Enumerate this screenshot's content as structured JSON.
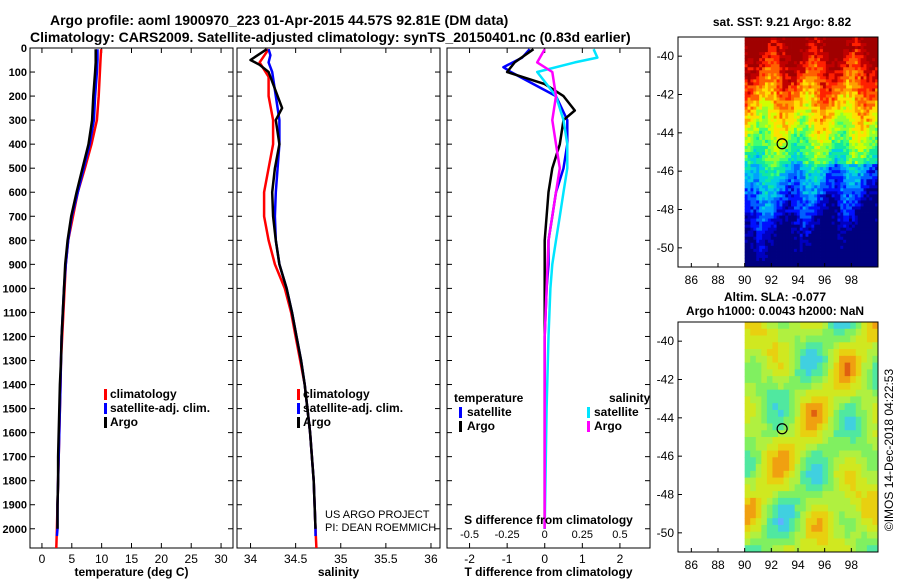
{
  "titles": {
    "line1": "Argo profile: aoml 1900970_223 01-Apr-2015 44.57S 92.81E (DM data)",
    "line2": "Climatology: CARS2009. Satellite-adjusted climatology: synTS_20150401.nc (0.83d earlier)"
  },
  "colors": {
    "climatology": "#ff0000",
    "satellite": "#0000ff",
    "argo": "#000000",
    "s_sat": "#00e5ff",
    "s_argo": "#ff00ff"
  },
  "chart_data": [
    {
      "type": "line",
      "id": "temperature",
      "xlabel": "temperature (deg C)",
      "xlim": [
        -2,
        32
      ],
      "xticks": [
        0,
        5,
        10,
        15,
        20,
        25,
        30
      ],
      "ylim": [
        2080,
        0
      ],
      "yticks": [
        0,
        100,
        200,
        300,
        400,
        500,
        600,
        700,
        800,
        900,
        1000,
        1100,
        1200,
        1300,
        1400,
        1500,
        1600,
        1700,
        1800,
        1900,
        2000
      ],
      "legend": [
        "climatology",
        "satellite-adj. clim.",
        "Argo"
      ],
      "series": [
        {
          "name": "climatology",
          "color": "#ff0000",
          "points": [
            [
              9.9,
              5
            ],
            [
              9.8,
              50
            ],
            [
              9.7,
              100
            ],
            [
              9.5,
              200
            ],
            [
              9.2,
              300
            ],
            [
              8.3,
              400
            ],
            [
              7.2,
              500
            ],
            [
              6.0,
              600
            ],
            [
              5.2,
              700
            ],
            [
              4.4,
              800
            ],
            [
              4.0,
              900
            ],
            [
              3.8,
              1000
            ],
            [
              3.6,
              1100
            ],
            [
              3.4,
              1200
            ],
            [
              3.2,
              1300
            ],
            [
              3.1,
              1400
            ],
            [
              3.0,
              1500
            ],
            [
              2.9,
              1600
            ],
            [
              2.8,
              1700
            ],
            [
              2.7,
              1800
            ],
            [
              2.6,
              1900
            ],
            [
              2.5,
              2000
            ],
            [
              2.4,
              2080
            ]
          ]
        },
        {
          "name": "satellite-adj. clim.",
          "color": "#0000ff",
          "points": [
            [
              9.3,
              5
            ],
            [
              9.3,
              50
            ],
            [
              9.2,
              100
            ],
            [
              8.9,
              200
            ],
            [
              8.7,
              300
            ],
            [
              8.0,
              400
            ],
            [
              7.0,
              500
            ],
            [
              6.0,
              600
            ],
            [
              5.0,
              700
            ],
            [
              4.4,
              800
            ],
            [
              4.0,
              900
            ],
            [
              3.7,
              1000
            ],
            [
              3.5,
              1100
            ],
            [
              3.3,
              1200
            ],
            [
              3.2,
              1300
            ],
            [
              3.1,
              1400
            ],
            [
              3.0,
              1500
            ],
            [
              2.9,
              1600
            ],
            [
              2.8,
              1700
            ],
            [
              2.7,
              1800
            ],
            [
              2.6,
              1900
            ],
            [
              2.6,
              2000
            ],
            [
              2.5,
              2030
            ]
          ]
        },
        {
          "name": "Argo",
          "color": "#000000",
          "points": [
            [
              9.0,
              5
            ],
            [
              9.0,
              60
            ],
            [
              8.9,
              100
            ],
            [
              8.6,
              200
            ],
            [
              8.4,
              300
            ],
            [
              7.8,
              400
            ],
            [
              6.8,
              500
            ],
            [
              5.8,
              600
            ],
            [
              4.9,
              700
            ],
            [
              4.3,
              800
            ],
            [
              3.9,
              900
            ],
            [
              3.7,
              1000
            ],
            [
              3.5,
              1100
            ],
            [
              3.3,
              1200
            ],
            [
              3.2,
              1300
            ],
            [
              3.0,
              1400
            ],
            [
              2.9,
              1500
            ],
            [
              2.8,
              1600
            ],
            [
              2.7,
              1700
            ],
            [
              2.7,
              1800
            ],
            [
              2.6,
              1900
            ],
            [
              2.6,
              2000
            ]
          ]
        }
      ]
    },
    {
      "type": "line",
      "id": "salinity",
      "xlabel": "salinity",
      "xlim": [
        33.85,
        36.1
      ],
      "xticks": [
        34,
        34.5,
        35,
        35.5,
        36
      ],
      "ylim": [
        2080,
        0
      ],
      "legend": [
        "climatology",
        "satellite-adj. clim.",
        "Argo"
      ],
      "annotation": [
        "US ARGO PROJECT",
        "PI: DEAN ROEMMICH"
      ],
      "series": [
        {
          "name": "climatology",
          "color": "#ff0000",
          "points": [
            [
              34.2,
              5
            ],
            [
              34.1,
              60
            ],
            [
              34.2,
              120
            ],
            [
              34.2,
              200
            ],
            [
              34.25,
              300
            ],
            [
              34.25,
              400
            ],
            [
              34.2,
              500
            ],
            [
              34.15,
              600
            ],
            [
              34.15,
              700
            ],
            [
              34.2,
              800
            ],
            [
              34.27,
              900
            ],
            [
              34.38,
              1000
            ],
            [
              34.45,
              1100
            ],
            [
              34.5,
              1200
            ],
            [
              34.55,
              1300
            ],
            [
              34.6,
              1400
            ],
            [
              34.63,
              1500
            ],
            [
              34.66,
              1600
            ],
            [
              34.68,
              1700
            ],
            [
              34.7,
              1800
            ],
            [
              34.71,
              1900
            ],
            [
              34.72,
              2000
            ],
            [
              34.73,
              2080
            ]
          ]
        },
        {
          "name": "satellite-adj. clim.",
          "color": "#0000ff",
          "points": [
            [
              34.2,
              5
            ],
            [
              34.22,
              30
            ],
            [
              34.2,
              60
            ],
            [
              34.24,
              100
            ],
            [
              34.28,
              200
            ],
            [
              34.32,
              300
            ],
            [
              34.32,
              400
            ],
            [
              34.3,
              500
            ],
            [
              34.28,
              600
            ],
            [
              34.27,
              700
            ],
            [
              34.28,
              800
            ],
            [
              34.32,
              900
            ],
            [
              34.4,
              1000
            ],
            [
              34.46,
              1100
            ],
            [
              34.51,
              1200
            ],
            [
              34.56,
              1300
            ],
            [
              34.6,
              1400
            ],
            [
              34.63,
              1500
            ],
            [
              34.66,
              1600
            ],
            [
              34.68,
              1700
            ],
            [
              34.7,
              1800
            ],
            [
              34.71,
              1900
            ],
            [
              34.72,
              2000
            ],
            [
              34.72,
              2030
            ]
          ]
        },
        {
          "name": "Argo",
          "color": "#000000",
          "points": [
            [
              34.18,
              5
            ],
            [
              34.0,
              50
            ],
            [
              34.1,
              70
            ],
            [
              34.2,
              100
            ],
            [
              34.3,
              200
            ],
            [
              34.35,
              250
            ],
            [
              34.28,
              300
            ],
            [
              34.32,
              400
            ],
            [
              34.27,
              500
            ],
            [
              34.24,
              600
            ],
            [
              34.25,
              700
            ],
            [
              34.28,
              800
            ],
            [
              34.32,
              900
            ],
            [
              34.4,
              1000
            ],
            [
              34.46,
              1100
            ],
            [
              34.51,
              1200
            ],
            [
              34.56,
              1300
            ],
            [
              34.6,
              1400
            ],
            [
              34.63,
              1500
            ],
            [
              34.66,
              1600
            ],
            [
              34.68,
              1700
            ],
            [
              34.7,
              1800
            ],
            [
              34.71,
              1900
            ],
            [
              34.72,
              2000
            ]
          ]
        }
      ]
    },
    {
      "type": "line",
      "id": "difference",
      "xlabel": "T difference from climatology",
      "xlim": [
        -2.6,
        2.8
      ],
      "xticks": [
        -2,
        -1,
        0,
        1,
        2
      ],
      "s_axis_label": "S difference from climatology",
      "s_ticks": [
        "-0.5",
        "-0.25",
        "0",
        "0.25",
        "0.5"
      ],
      "s_tick_values": [
        -2,
        -1,
        0,
        1,
        2
      ],
      "ylim": [
        2080,
        0
      ],
      "legend_left_title": "temperature",
      "legend_right_title": "salinity",
      "legend_left": [
        "satellite",
        "Argo"
      ],
      "legend_right": [
        "satellite",
        "Argo"
      ],
      "series": [
        {
          "name": "temperature satellite",
          "color": "#0000ff",
          "points": [
            [
              -0.4,
              5
            ],
            [
              -0.6,
              40
            ],
            [
              -1.1,
              80
            ],
            [
              -0.9,
              100
            ],
            [
              -0.3,
              150
            ],
            [
              0.3,
              200
            ],
            [
              0.6,
              300
            ],
            [
              0.6,
              400
            ],
            [
              0.5,
              500
            ],
            [
              0.3,
              600
            ],
            [
              0.2,
              700
            ],
            [
              0.1,
              800
            ],
            [
              0.1,
              900
            ],
            [
              0.05,
              1000
            ],
            [
              0.0,
              1200
            ],
            [
              0.0,
              1500
            ],
            [
              0.0,
              2000
            ]
          ]
        },
        {
          "name": "temperature Argo",
          "color": "#000000",
          "points": [
            [
              -0.3,
              5
            ],
            [
              -0.8,
              60
            ],
            [
              -1.0,
              100
            ],
            [
              0.0,
              150
            ],
            [
              0.5,
              200
            ],
            [
              0.8,
              260
            ],
            [
              0.5,
              300
            ],
            [
              0.4,
              400
            ],
            [
              0.2,
              500
            ],
            [
              0.1,
              600
            ],
            [
              0.05,
              700
            ],
            [
              0.0,
              800
            ],
            [
              0.0,
              1000
            ],
            [
              0.0,
              2000
            ]
          ]
        },
        {
          "name": "salinity satellite",
          "color": "#00e5ff",
          "points": [
            [
              1.3,
              5
            ],
            [
              1.4,
              40
            ],
            [
              0.8,
              60
            ],
            [
              -0.2,
              100
            ],
            [
              0.3,
              200
            ],
            [
              0.5,
              300
            ],
            [
              0.6,
              400
            ],
            [
              0.6,
              500
            ],
            [
              0.5,
              600
            ],
            [
              0.4,
              700
            ],
            [
              0.3,
              800
            ],
            [
              0.2,
              900
            ],
            [
              0.15,
              1000
            ],
            [
              0.1,
              1200
            ],
            [
              0.05,
              1500
            ],
            [
              0.0,
              2000
            ]
          ]
        },
        {
          "name": "salinity Argo",
          "color": "#ff00ff",
          "points": [
            [
              0.0,
              5
            ],
            [
              -0.2,
              60
            ],
            [
              0.2,
              100
            ],
            [
              0.3,
              200
            ],
            [
              0.2,
              300
            ],
            [
              0.3,
              400
            ],
            [
              0.4,
              500
            ],
            [
              0.3,
              600
            ],
            [
              0.2,
              700
            ],
            [
              0.1,
              800
            ],
            [
              0.05,
              1000
            ],
            [
              0.0,
              1200
            ],
            [
              0.0,
              2000
            ]
          ]
        }
      ]
    },
    {
      "type": "heatmap",
      "id": "sst_map",
      "title": "sat. SST: 9.21 Argo: 8.82",
      "xticks": [
        86,
        88,
        90,
        92,
        94,
        96,
        98
      ],
      "yticks": [
        -40,
        -42,
        -44,
        -46,
        -48,
        -50
      ],
      "xlim": [
        85,
        100
      ],
      "ylim": [
        -51,
        -39
      ],
      "marker": [
        92.81,
        -44.57
      ]
    },
    {
      "type": "heatmap",
      "id": "sla_map",
      "title_line1": "Altim. SLA: -0.077",
      "title_line2": "Argo h1000: 0.0043 h2000: NaN",
      "xticks": [
        86,
        88,
        90,
        92,
        94,
        96,
        98
      ],
      "yticks": [
        -40,
        -42,
        -44,
        -46,
        -48,
        -50
      ],
      "xlim": [
        85,
        100
      ],
      "ylim": [
        -51,
        -39
      ],
      "marker": [
        92.81,
        -44.57
      ]
    }
  ],
  "credit": "©IMOS 14-Dec-2018 04:22:53"
}
